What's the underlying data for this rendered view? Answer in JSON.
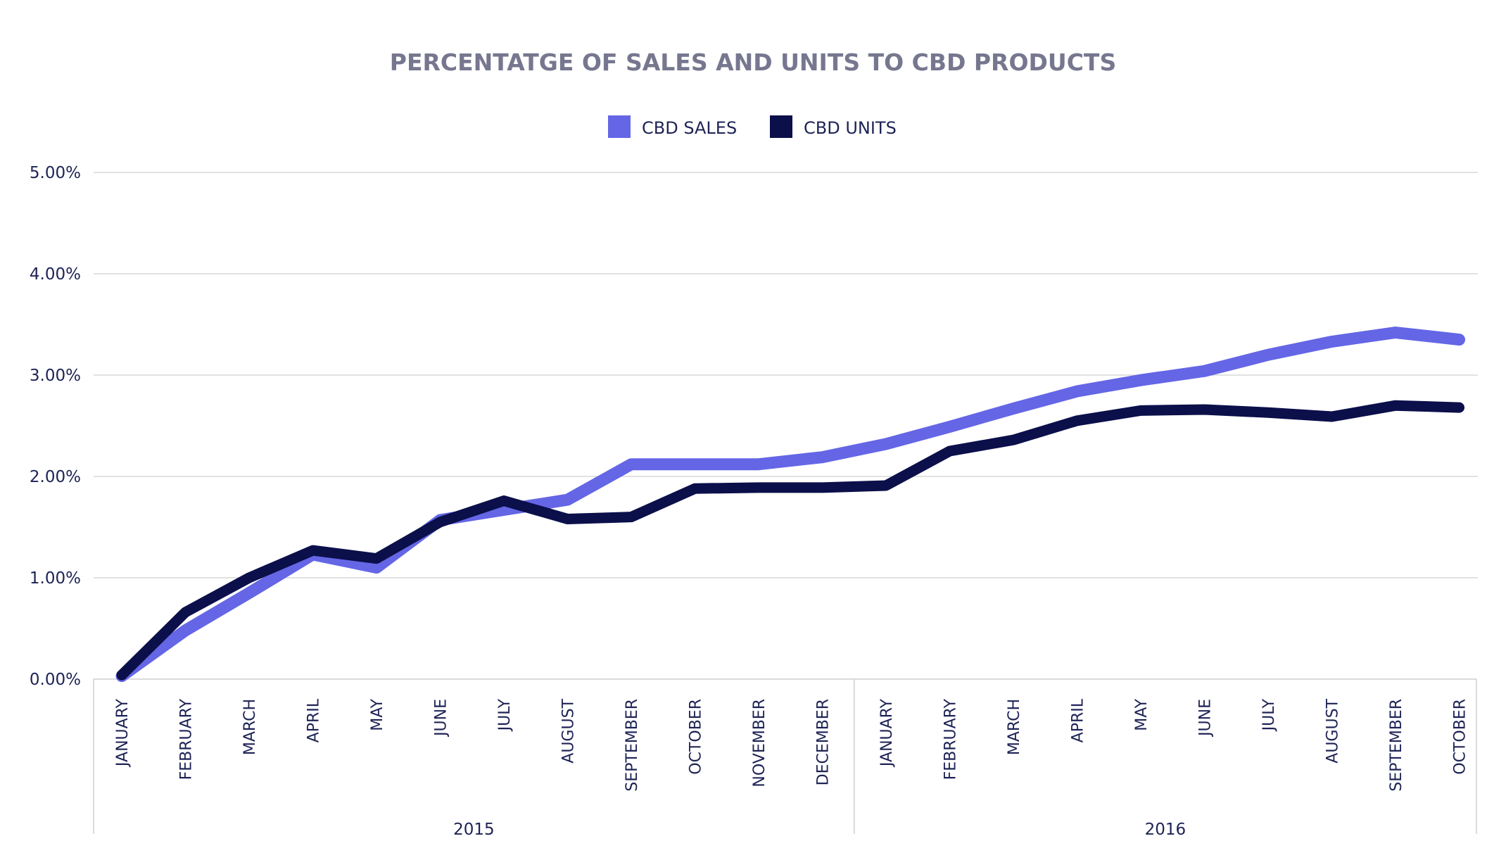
{
  "chart_data": {
    "type": "line",
    "title": "PERCENTATGE OF SALES AND UNITS TO CBD PRODUCTS",
    "xlabel": "",
    "ylabel": "",
    "ylim": [
      0,
      5
    ],
    "yticks": [
      "0.00%",
      "1.00%",
      "2.00%",
      "3.00%",
      "4.00%",
      "5.00%"
    ],
    "grid": true,
    "legend_position": "top-center",
    "categories": [
      "JANUARY",
      "FEBRUARY",
      "MARCH",
      "APRIL",
      "MAY",
      "JUNE",
      "JULY",
      "AUGUST",
      "SEPTEMBER",
      "OCTOBER",
      "NOVEMBER",
      "DECEMBER",
      "JANUARY",
      "FEBRUARY",
      "MARCH",
      "APRIL",
      "MAY",
      "JUNE",
      "JULY",
      "AUGUST",
      "SEPTEMBER",
      "OCTOBER"
    ],
    "groups": [
      {
        "label": "2015",
        "count": 12
      },
      {
        "label": "2016",
        "count": 10
      }
    ],
    "series": [
      {
        "name": "CBD SALES",
        "color": "#6466e6",
        "values": [
          0.03,
          0.48,
          0.85,
          1.23,
          1.1,
          1.57,
          1.67,
          1.77,
          2.12,
          2.12,
          2.12,
          2.19,
          2.32,
          2.49,
          2.67,
          2.84,
          2.95,
          3.04,
          3.2,
          3.33,
          3.42,
          3.35
        ]
      },
      {
        "name": "CBD UNITS",
        "color": "#0b0f4a",
        "values": [
          0.04,
          0.66,
          1.0,
          1.27,
          1.19,
          1.55,
          1.76,
          1.58,
          1.6,
          1.88,
          1.89,
          1.89,
          1.91,
          2.25,
          2.36,
          2.55,
          2.65,
          2.66,
          2.63,
          2.59,
          2.7,
          2.68
        ]
      }
    ]
  }
}
